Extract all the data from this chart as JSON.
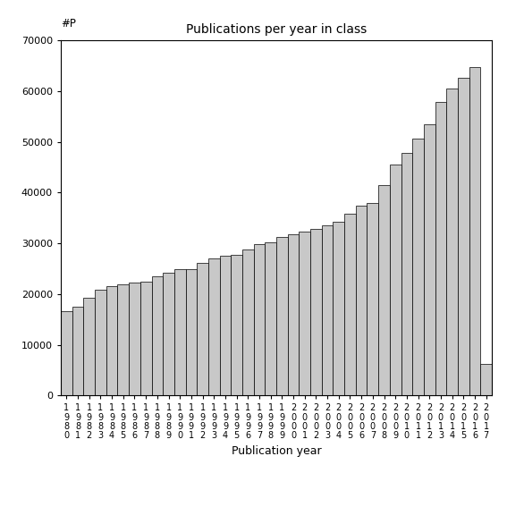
{
  "title": "Publications per year in class",
  "xlabel": "Publication year",
  "ylabel": "#P",
  "bar_color": "#c8c8c8",
  "edge_color": "#000000",
  "ylim": [
    0,
    70000
  ],
  "yticks": [
    0,
    10000,
    20000,
    30000,
    40000,
    50000,
    60000,
    70000
  ],
  "years": [
    1980,
    1981,
    1982,
    1983,
    1984,
    1985,
    1986,
    1987,
    1988,
    1989,
    1990,
    1991,
    1992,
    1993,
    1994,
    1995,
    1996,
    1997,
    1998,
    1999,
    2000,
    2001,
    2002,
    2003,
    2004,
    2005,
    2006,
    2007,
    2008,
    2009,
    2010,
    2011,
    2012,
    2013,
    2014,
    2015,
    2016,
    2017
  ],
  "values": [
    16700,
    17500,
    19200,
    20900,
    21500,
    22000,
    22300,
    22500,
    23500,
    24200,
    24900,
    25000,
    26200,
    27000,
    27500,
    27700,
    28800,
    29800,
    30200,
    31200,
    31800,
    32300,
    32900,
    33500,
    34200,
    35800,
    37500,
    38000,
    41500,
    45500,
    47800,
    50700,
    53500,
    57900,
    60500,
    62600,
    64700,
    6200
  ]
}
